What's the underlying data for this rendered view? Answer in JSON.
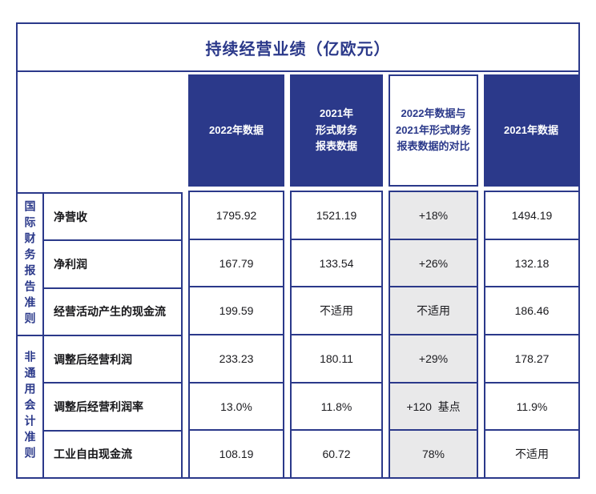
{
  "colors": {
    "navy": "#2b398a",
    "grey_column": "#e9e9ea",
    "background": "#ffffff",
    "body_text": "#1b1b1f"
  },
  "header_display": [
    "2022年数据",
    "2021年\n形式财务\n报表数据",
    "2022年数据与\n2021年形式财务\n报表数据的对比",
    "2021年数据"
  ],
  "chart_data": {
    "type": "table",
    "title": "持续经营业绩（亿欧元）",
    "columns": [
      "2022年数据",
      "2021年形式财务报表数据",
      "2022年数据与2021年形式财务报表数据的对比",
      "2021年数据"
    ],
    "row_groups": [
      {
        "group": "国际财务报告准则",
        "rows": [
          "净营收",
          "净利润",
          "经营活动产生的现金流"
        ]
      },
      {
        "group": "非通用会计准则",
        "rows": [
          "调整后经营利润",
          "调整后经营利润率",
          "工业自由现金流"
        ]
      }
    ],
    "cells": [
      [
        "1795.92",
        "1521.19",
        "+18%",
        "1494.19"
      ],
      [
        "167.79",
        "133.54",
        "+26%",
        "132.18"
      ],
      [
        "199.59",
        "不适用",
        "不适用",
        "186.46"
      ],
      [
        "233.23",
        "180.11",
        "+29%",
        "178.27"
      ],
      [
        "13.0%",
        "11.8%",
        "+120  基点",
        "11.9%"
      ],
      [
        "108.19",
        "60.72",
        "78%",
        "不适用"
      ]
    ]
  }
}
